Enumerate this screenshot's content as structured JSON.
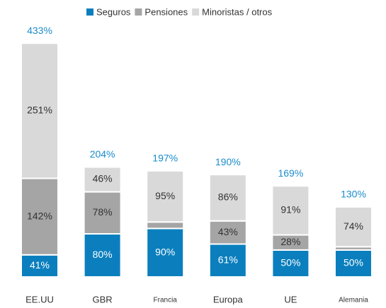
{
  "chart_data": {
    "type": "stacked_bar",
    "categories": [
      "EE.UU",
      "GBR",
      "Francia",
      "Europa",
      "UE",
      "Alemania"
    ],
    "series": [
      {
        "name": "Seguros",
        "color": "#0b7fbe",
        "values": [
          41,
          80,
          90,
          61,
          50,
          50
        ],
        "value_labels": [
          "41%",
          "80%",
          "90%",
          "61%",
          "50%",
          "50%"
        ]
      },
      {
        "name": "Pensiones",
        "color": "#a5a5a5",
        "values": [
          142,
          78,
          12,
          43,
          28,
          6
        ],
        "value_labels": [
          "142%",
          "78%",
          null,
          "43%",
          "28%",
          null
        ]
      },
      {
        "name": "Minoristas / otros",
        "color": "#d9d9d9",
        "values": [
          251,
          46,
          95,
          86,
          91,
          74
        ],
        "value_labels": [
          "251%",
          "46%",
          "95%",
          "86%",
          "91%",
          "74%"
        ]
      }
    ],
    "totals": [
      433,
      204,
      197,
      190,
      169,
      130
    ],
    "total_labels": [
      "433%",
      "204%",
      "197%",
      "190%",
      "169%",
      "130%"
    ],
    "total_color": "#1b8ccb",
    "ylim": [
      0,
      450
    ]
  }
}
